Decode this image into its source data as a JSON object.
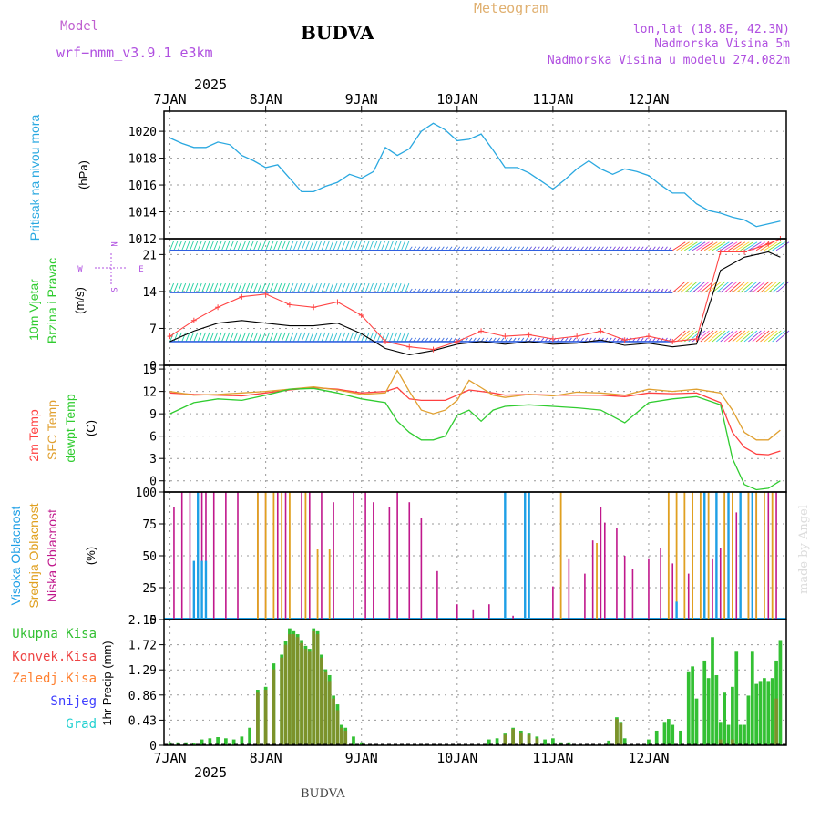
{
  "header": {
    "model_label": "Model",
    "model_name": "wrf−nmm_v3.9.1  e3km",
    "location": "BUDVA",
    "product": "Meteogram",
    "coords": "lon,lat (18.8E, 42.3N)",
    "elevation": "Nadmorska Visina 5m",
    "model_elevation": "Nadmorska Visina u modelu 274.082m",
    "footer": "BUDVA",
    "credit": "made by Angel",
    "year": "2025"
  },
  "colors": {
    "pressure": "#2aa8e0",
    "wind_line": "#ff4444",
    "wind_black": "#000000",
    "t2m": "#ff4040",
    "sfc": "#e0a030",
    "dew": "#30cc30",
    "high": "#1e9fe6",
    "mid": "#e0a020",
    "low": "#c0188c",
    "precip_total": "#33c033",
    "precip_conv": "#ee4444",
    "precip_frz": "#ff8030",
    "snow": "#4040ff",
    "hail": "#20d0d0"
  },
  "chart_data": [
    {
      "type": "line",
      "title": "Pritisak na nivou mora",
      "ylabel": "(hPa)",
      "x_ticks": [
        "7JAN",
        "8JAN",
        "9JAN",
        "10JAN",
        "11JAN",
        "12JAN"
      ],
      "ylim": [
        1012,
        1021.5
      ],
      "yticks": [
        1012,
        1014,
        1016,
        1018,
        1020
      ],
      "x_hours": [
        0,
        3,
        6,
        9,
        12,
        15,
        18,
        21,
        24,
        27,
        30,
        33,
        36,
        39,
        42,
        45,
        48,
        51,
        54,
        57,
        60,
        63,
        66,
        69,
        72,
        75,
        78,
        81,
        84,
        87,
        90,
        93,
        96,
        99,
        102,
        105,
        108,
        111,
        114,
        117,
        120,
        123,
        126,
        129,
        132,
        135,
        138,
        141,
        144,
        147,
        150,
        153
      ],
      "values": [
        1019.5,
        1019.1,
        1018.8,
        1018.8,
        1019.2,
        1019.0,
        1018.2,
        1017.8,
        1017.3,
        1017.5,
        1016.5,
        1015.5,
        1015.5,
        1015.9,
        1016.2,
        1016.8,
        1016.5,
        1017.0,
        1018.8,
        1018.2,
        1018.7,
        1020.0,
        1020.6,
        1020.1,
        1019.3,
        1019.4,
        1019.8,
        1018.6,
        1017.3,
        1017.3,
        1016.9,
        1016.3,
        1015.7,
        1016.4,
        1017.2,
        1017.8,
        1017.2,
        1016.8,
        1017.2,
        1017.0,
        1016.7,
        1016.0,
        1015.4,
        1015.4,
        1014.6,
        1014.1,
        1013.9,
        1013.6,
        1013.4,
        1012.9,
        1013.1,
        1013.3
      ]
    },
    {
      "type": "line",
      "title": "10m Vjetar Brzina i Pravac",
      "ylabel": "(m/s)",
      "ylim": [
        0,
        24
      ],
      "yticks": [
        0,
        7,
        14,
        21
      ],
      "compass": [
        "N",
        "W",
        "E",
        "S"
      ],
      "barb_levels": [
        4.5,
        13.8,
        21.8
      ],
      "x_hours": [
        0,
        6,
        12,
        18,
        24,
        30,
        36,
        42,
        48,
        54,
        60,
        66,
        72,
        78,
        84,
        90,
        96,
        102,
        108,
        114,
        120,
        126,
        132,
        138,
        144,
        150,
        153
      ],
      "speed": [
        5.5,
        8.5,
        11.0,
        13.0,
        13.5,
        11.5,
        11.0,
        12.0,
        9.5,
        4.5,
        3.5,
        3.0,
        4.5,
        6.5,
        5.5,
        5.8,
        5.0,
        5.5,
        6.5,
        4.8,
        5.5,
        4.5,
        5.0,
        21.5,
        21.5,
        23.0,
        24.0
      ],
      "gust": [
        4.5,
        6.5,
        8.0,
        8.5,
        8.0,
        7.5,
        7.5,
        8.0,
        6.0,
        3.2,
        2.0,
        2.8,
        4.0,
        4.5,
        4.0,
        4.5,
        4.0,
        4.2,
        4.8,
        3.8,
        4.2,
        3.5,
        4.0,
        18.0,
        20.5,
        21.5,
        20.5
      ]
    },
    {
      "type": "line",
      "title": "2m Temp / SFC Temp / dewpt Temp",
      "series_labels": [
        "2m Temp",
        "SFC Temp",
        "dewpt Temp"
      ],
      "ylabel": "(C)",
      "ylim": [
        -1.5,
        15.5
      ],
      "yticks": [
        0,
        3,
        6,
        9,
        12,
        15
      ],
      "x_hours": [
        0,
        6,
        12,
        18,
        24,
        30,
        36,
        42,
        48,
        54,
        57,
        60,
        63,
        66,
        69,
        72,
        75,
        78,
        81,
        84,
        90,
        96,
        102,
        108,
        114,
        120,
        126,
        132,
        138,
        141,
        144,
        147,
        150,
        153
      ],
      "series": [
        {
          "name": "2m Temp",
          "values": [
            11.8,
            11.6,
            11.5,
            11.4,
            11.8,
            12.2,
            12.5,
            12.3,
            11.8,
            12.0,
            12.5,
            11.0,
            10.8,
            10.8,
            10.8,
            11.5,
            12.2,
            12.0,
            11.8,
            11.5,
            11.6,
            11.5,
            11.5,
            11.5,
            11.3,
            11.8,
            11.7,
            11.8,
            10.5,
            6.5,
            4.5,
            3.6,
            3.5,
            4.0
          ]
        },
        {
          "name": "SFC Temp",
          "values": [
            12.0,
            11.5,
            11.6,
            11.8,
            12.0,
            12.3,
            12.6,
            12.2,
            11.6,
            11.8,
            14.8,
            12.0,
            9.5,
            9.0,
            9.5,
            10.8,
            13.5,
            12.5,
            11.5,
            11.2,
            11.6,
            11.4,
            11.9,
            11.8,
            11.5,
            12.3,
            12.0,
            12.3,
            11.8,
            9.5,
            6.5,
            5.5,
            5.5,
            6.8
          ]
        },
        {
          "name": "dewpt Temp",
          "values": [
            9.0,
            10.5,
            11.0,
            10.8,
            11.5,
            12.3,
            12.4,
            11.8,
            11.0,
            10.5,
            8.0,
            6.5,
            5.5,
            5.5,
            6.0,
            8.8,
            9.5,
            8.0,
            9.5,
            10.0,
            10.2,
            10.0,
            9.8,
            9.5,
            7.8,
            10.5,
            11.0,
            11.3,
            10.2,
            3.0,
            -0.5,
            -1.2,
            -1.0,
            0.0
          ]
        }
      ]
    },
    {
      "type": "bar",
      "title": "Visoka / Srednja / Niska Oblacnost",
      "series_labels": [
        "Visoka Oblacnost",
        "Srednja Oblacnost",
        "Niska Oblacnost"
      ],
      "ylabel": "(%)",
      "ylim": [
        0,
        100
      ],
      "yticks": [
        0,
        25,
        50,
        75,
        100
      ],
      "low": [
        [
          1,
          88
        ],
        [
          3,
          100
        ],
        [
          5,
          100
        ],
        [
          8,
          100
        ],
        [
          9,
          100
        ],
        [
          11,
          100
        ],
        [
          14,
          100
        ],
        [
          17,
          100
        ],
        [
          22,
          100
        ],
        [
          24,
          100
        ],
        [
          27,
          100
        ],
        [
          29,
          100
        ],
        [
          33,
          100
        ],
        [
          35,
          100
        ],
        [
          38,
          100
        ],
        [
          41,
          92
        ],
        [
          46,
          100
        ],
        [
          49,
          100
        ],
        [
          51,
          92
        ],
        [
          55,
          88
        ],
        [
          57,
          100
        ],
        [
          60,
          92
        ],
        [
          63,
          80
        ],
        [
          67,
          38
        ],
        [
          72,
          12
        ],
        [
          76,
          8
        ],
        [
          80,
          12
        ],
        [
          84,
          5
        ],
        [
          86,
          3
        ],
        [
          90,
          36
        ],
        [
          96,
          26
        ],
        [
          100,
          48
        ],
        [
          104,
          36
        ],
        [
          106,
          62
        ],
        [
          108,
          88
        ],
        [
          109,
          76
        ],
        [
          112,
          72
        ],
        [
          114,
          50
        ],
        [
          116,
          40
        ],
        [
          120,
          48
        ],
        [
          123,
          56
        ],
        [
          126,
          44
        ],
        [
          130,
          36
        ],
        [
          134,
          36
        ],
        [
          136,
          48
        ],
        [
          138,
          56
        ],
        [
          140,
          62
        ],
        [
          141,
          92
        ],
        [
          142,
          84
        ],
        [
          145,
          100
        ],
        [
          147,
          100
        ],
        [
          150,
          100
        ],
        [
          152,
          100
        ]
      ],
      "mid": [
        [
          22,
          100
        ],
        [
          24,
          100
        ],
        [
          26,
          100
        ],
        [
          28,
          100
        ],
        [
          30,
          100
        ],
        [
          34,
          100
        ],
        [
          37,
          55
        ],
        [
          40,
          55
        ],
        [
          98,
          100
        ],
        [
          107,
          60
        ],
        [
          125,
          100
        ],
        [
          127,
          100
        ],
        [
          129,
          100
        ],
        [
          131,
          100
        ],
        [
          133,
          100
        ],
        [
          135,
          100
        ],
        [
          137,
          100
        ],
        [
          139,
          100
        ],
        [
          141,
          100
        ],
        [
          143,
          100
        ],
        [
          145,
          100
        ],
        [
          147,
          100
        ],
        [
          149,
          100
        ],
        [
          151,
          100
        ]
      ],
      "high": [
        [
          6,
          46
        ],
        [
          7,
          100
        ],
        [
          8,
          46
        ],
        [
          9,
          46
        ],
        [
          84,
          100
        ],
        [
          89,
          100
        ],
        [
          90,
          100
        ],
        [
          127,
          14
        ],
        [
          134,
          100
        ],
        [
          137,
          100
        ],
        [
          140,
          100
        ],
        [
          143,
          100
        ],
        [
          146,
          100
        ]
      ]
    },
    {
      "type": "bar",
      "title": "1hr Precip",
      "series_labels": [
        "Ukupna Kisa",
        "Konvek.Kisa",
        "Zaledj.Kisa",
        "Snijeg",
        "Grad"
      ],
      "ylabel": "1hr Precip (mm)",
      "ylim": [
        0,
        2.15
      ],
      "yticks": [
        0,
        0.43,
        0.86,
        1.29,
        1.72,
        2.15
      ],
      "total": [
        [
          0,
          0.05
        ],
        [
          2,
          0.05
        ],
        [
          4,
          0.05
        ],
        [
          6,
          0.03
        ],
        [
          8,
          0.1
        ],
        [
          10,
          0.12
        ],
        [
          12,
          0.14
        ],
        [
          14,
          0.12
        ],
        [
          16,
          0.1
        ],
        [
          18,
          0.15
        ],
        [
          20,
          0.3
        ],
        [
          22,
          0.95
        ],
        [
          24,
          1.0
        ],
        [
          26,
          1.4
        ],
        [
          28,
          1.55
        ],
        [
          29,
          1.78
        ],
        [
          30,
          2.0
        ],
        [
          31,
          1.95
        ],
        [
          32,
          1.9
        ],
        [
          33,
          1.8
        ],
        [
          34,
          1.7
        ],
        [
          35,
          1.65
        ],
        [
          36,
          2.0
        ],
        [
          37,
          1.95
        ],
        [
          38,
          1.55
        ],
        [
          39,
          1.3
        ],
        [
          40,
          1.2
        ],
        [
          41,
          0.85
        ],
        [
          42,
          0.7
        ],
        [
          43,
          0.35
        ],
        [
          44,
          0.3
        ],
        [
          46,
          0.15
        ],
        [
          48,
          0.05
        ],
        [
          80,
          0.1
        ],
        [
          82,
          0.12
        ],
        [
          84,
          0.2
        ],
        [
          86,
          0.3
        ],
        [
          88,
          0.25
        ],
        [
          90,
          0.2
        ],
        [
          92,
          0.15
        ],
        [
          94,
          0.1
        ],
        [
          96,
          0.12
        ],
        [
          98,
          0.05
        ],
        [
          100,
          0.05
        ],
        [
          110,
          0.08
        ],
        [
          112,
          0.48
        ],
        [
          113,
          0.4
        ],
        [
          114,
          0.12
        ],
        [
          120,
          0.1
        ],
        [
          122,
          0.25
        ],
        [
          124,
          0.4
        ],
        [
          125,
          0.45
        ],
        [
          126,
          0.35
        ],
        [
          128,
          0.25
        ],
        [
          130,
          1.25
        ],
        [
          131,
          1.35
        ],
        [
          132,
          0.8
        ],
        [
          134,
          1.45
        ],
        [
          135,
          1.15
        ],
        [
          136,
          1.85
        ],
        [
          137,
          1.2
        ],
        [
          138,
          0.4
        ],
        [
          139,
          0.9
        ],
        [
          140,
          0.35
        ],
        [
          141,
          1.0
        ],
        [
          142,
          1.6
        ],
        [
          143,
          0.35
        ],
        [
          144,
          0.35
        ],
        [
          145,
          0.85
        ],
        [
          146,
          1.6
        ],
        [
          147,
          1.05
        ],
        [
          148,
          1.1
        ],
        [
          149,
          1.15
        ],
        [
          150,
          1.1
        ],
        [
          151,
          1.15
        ],
        [
          152,
          1.45
        ],
        [
          153,
          1.8
        ]
      ],
      "conv": [
        [
          22,
          0.9
        ],
        [
          24,
          0.95
        ],
        [
          26,
          1.3
        ],
        [
          28,
          1.5
        ],
        [
          29,
          1.72
        ],
        [
          30,
          1.9
        ],
        [
          31,
          1.9
        ],
        [
          32,
          1.85
        ],
        [
          33,
          1.75
        ],
        [
          34,
          1.65
        ],
        [
          35,
          1.6
        ],
        [
          36,
          1.95
        ],
        [
          37,
          1.9
        ],
        [
          38,
          1.5
        ],
        [
          39,
          1.25
        ],
        [
          40,
          1.1
        ],
        [
          41,
          0.8
        ],
        [
          42,
          0.6
        ],
        [
          43,
          0.3
        ],
        [
          44,
          0.25
        ],
        [
          84,
          0.18
        ],
        [
          86,
          0.28
        ],
        [
          88,
          0.22
        ],
        [
          90,
          0.18
        ],
        [
          92,
          0.12
        ],
        [
          112,
          0.45
        ],
        [
          113,
          0.38
        ],
        [
          138,
          0.1
        ],
        [
          141,
          0.1
        ],
        [
          152,
          0.8
        ]
      ]
    }
  ]
}
